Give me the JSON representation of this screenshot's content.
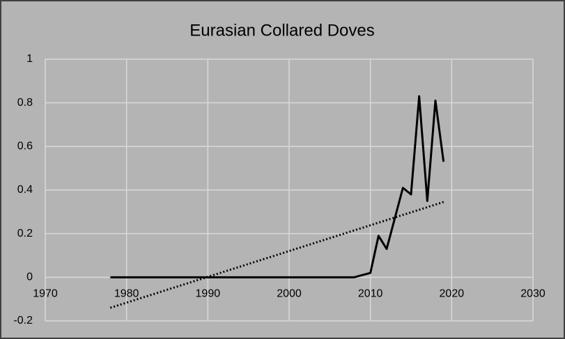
{
  "chart_data": {
    "type": "line",
    "title": "Eurasian Collared Doves",
    "x": [
      1978,
      1979,
      1980,
      1981,
      1982,
      1983,
      1984,
      1985,
      1986,
      1987,
      1988,
      1989,
      1990,
      1991,
      1992,
      1993,
      1994,
      1995,
      1996,
      1997,
      1998,
      1999,
      2000,
      2001,
      2002,
      2003,
      2004,
      2005,
      2006,
      2007,
      2008,
      2009,
      2010,
      2011,
      2012,
      2013,
      2014,
      2015,
      2016,
      2017,
      2018,
      2019
    ],
    "series": [
      {
        "color": "#000000",
        "values": [
          0,
          0,
          0,
          0,
          0,
          0,
          0,
          0,
          0,
          0,
          0,
          0,
          0,
          0,
          0,
          0,
          0,
          0,
          0,
          0,
          0,
          0,
          0,
          0,
          0,
          0,
          0,
          0,
          0,
          0,
          0,
          0.01,
          0.02,
          0.19,
          0.13,
          0.27,
          0.41,
          0.38,
          0.83,
          0.35,
          0.81,
          0.53
        ]
      }
    ],
    "trendline": {
      "x": [
        1978,
        2019
      ],
      "values": [
        -0.14,
        0.345
      ],
      "color": "#000000",
      "style": "dotted"
    },
    "xlim": [
      1970,
      2030
    ],
    "xticks": [
      1970,
      1980,
      1990,
      2000,
      2010,
      2020,
      2030
    ],
    "ylim": [
      -0.2,
      1
    ],
    "yticks": [
      -0.2,
      0,
      0.2,
      0.4,
      0.6,
      0.8,
      1
    ],
    "grid": true
  }
}
